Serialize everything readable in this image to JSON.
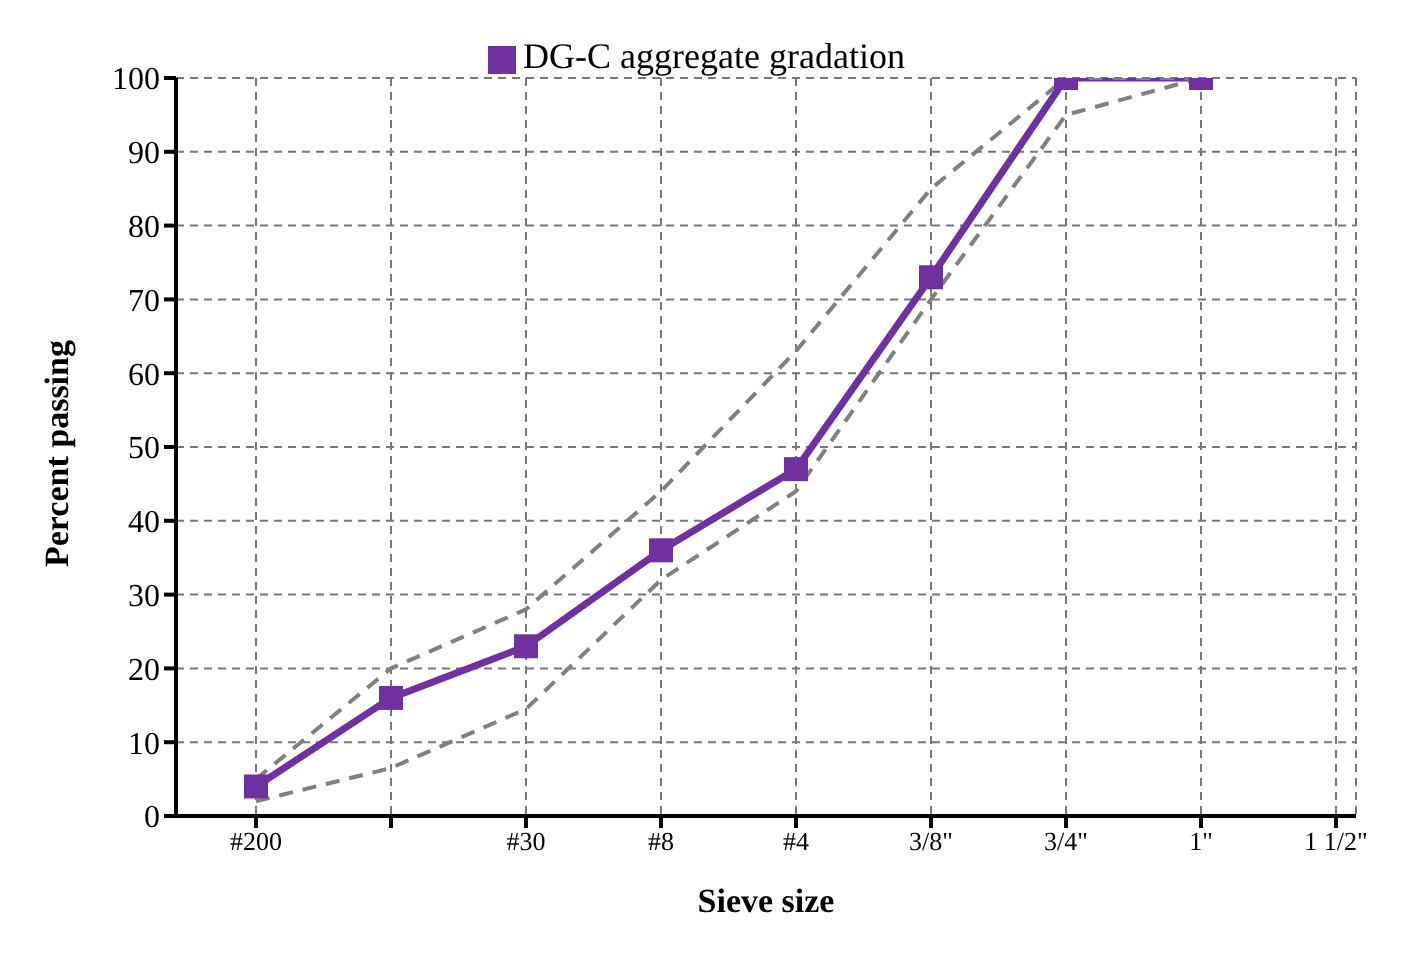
{
  "chart_data": {
    "type": "line",
    "xlabel": "Sieve size",
    "ylabel": "Percent passing",
    "categories": [
      "#200",
      null,
      "#30",
      "#8",
      "#4",
      "3/8\"",
      "3/4\"",
      "1\"",
      "1 1/2\""
    ],
    "series": [
      {
        "name": "DG-C aggregate gradation",
        "color": "#7030a0",
        "values": [
          4,
          16,
          23,
          36,
          47,
          73,
          100,
          100,
          null
        ],
        "marker": "square",
        "line_style": "solid"
      },
      {
        "color": "#808080",
        "values": [
          5,
          20,
          28,
          44,
          63,
          85,
          100,
          100,
          null
        ],
        "marker": "none",
        "line_style": "dashed"
      },
      {
        "color": "#808080",
        "values": [
          2,
          6.5,
          14.5,
          32,
          44,
          70,
          95,
          100,
          null
        ],
        "marker": "none",
        "line_style": "dashed"
      }
    ],
    "ylim": [
      0,
      100
    ],
    "yticks": [
      0,
      10,
      20,
      30,
      40,
      50,
      60,
      70,
      80,
      90,
      100
    ],
    "grid": true,
    "legend": "top"
  }
}
